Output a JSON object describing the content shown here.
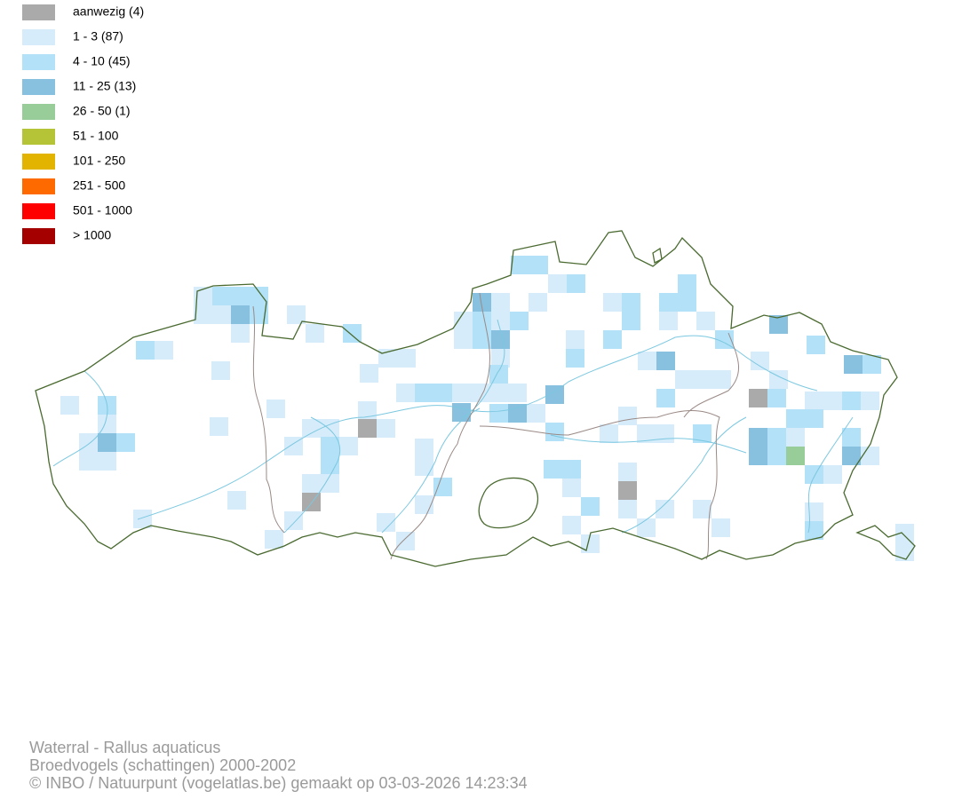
{
  "legend": {
    "items": [
      {
        "label": "aanwezig (4)",
        "color": "#aaaaaa"
      },
      {
        "label": "1 - 3 (87)",
        "color": "#d6ecfa"
      },
      {
        "label": "4 - 10 (45)",
        "color": "#b2e1f8"
      },
      {
        "label": "11 - 25 (13)",
        "color": "#88c0df"
      },
      {
        "label": "26 - 50 (1)",
        "color": "#98cc98"
      },
      {
        "label": "51 - 100",
        "color": "#b5c437"
      },
      {
        "label": "101 - 250",
        "color": "#e2b400"
      },
      {
        "label": "251 - 500",
        "color": "#ff6a00"
      },
      {
        "label": "501 - 1000",
        "color": "#ff0000"
      },
      {
        "label": "> 1000",
        "color": "#a50000"
      }
    ]
  },
  "footer": {
    "lines": [
      "Waterral - Rallus aquaticus",
      "Broedvogels (schattingen) 2000-2002",
      "© INBO / Natuurpunt (vogelatlas.be) gemaakt op 03-03-2026 14:23:34"
    ]
  }
}
